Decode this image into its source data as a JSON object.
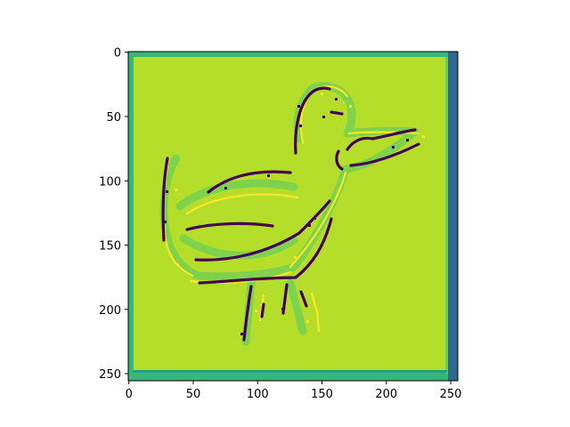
{
  "chart_data": {
    "type": "heatmap",
    "title": "",
    "xlabel": "",
    "ylabel": "",
    "xlim": [
      0,
      255
    ],
    "ylim": [
      255,
      0
    ],
    "image_size": [
      256,
      256
    ],
    "grid": false,
    "colormap": "viridis",
    "content": "edge-filtered duck drawing",
    "xticks": [
      0,
      50,
      100,
      150,
      200,
      250
    ],
    "yticks": [
      0,
      50,
      100,
      150,
      200,
      250
    ],
    "xtick_labels": [
      "0",
      "50",
      "100",
      "150",
      "200",
      "250"
    ],
    "ytick_labels": [
      "0",
      "50",
      "100",
      "150",
      "200",
      "250"
    ],
    "colors": {
      "background": "#b5de2b",
      "low": "#440154",
      "mid_low": "#31688e",
      "mid": "#35b779",
      "high": "#fde725"
    }
  }
}
